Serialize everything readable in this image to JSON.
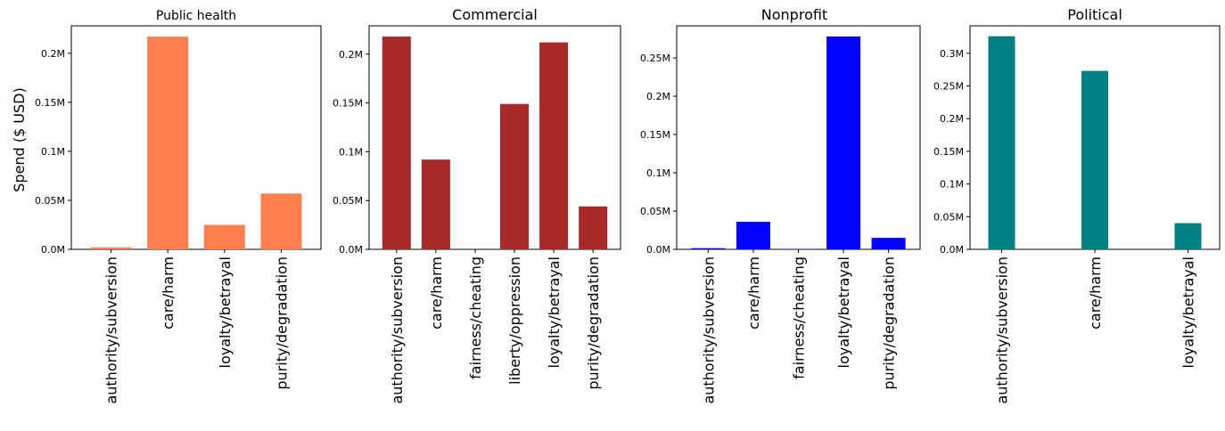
{
  "figure": {
    "ylabel": "Spend ($ USD)"
  },
  "chart_data": [
    {
      "type": "bar",
      "title": "Public health",
      "color": "#ff7f50",
      "categories": [
        "authority/subversion",
        "care/harm",
        "loyalty/betrayal",
        "purity/degradation"
      ],
      "values": [
        2000,
        217000,
        25000,
        57000
      ],
      "ylim": [
        0,
        228000
      ],
      "yticks": [
        0,
        50000,
        100000,
        150000,
        200000
      ],
      "ytick_labels": [
        "0.0M",
        "0.05M",
        "0.1M",
        "0.15M",
        "0.2M"
      ],
      "grid": false
    },
    {
      "type": "bar",
      "title": "Commercial",
      "color": "#a52a2a",
      "categories": [
        "authority/subversion",
        "care/harm",
        "fairness/cheating",
        "liberty/oppression",
        "loyalty/betrayal",
        "purity/degradation"
      ],
      "values": [
        218000,
        92000,
        0,
        149000,
        212000,
        44000
      ],
      "ylim": [
        0,
        229000
      ],
      "yticks": [
        0,
        50000,
        100000,
        150000,
        200000
      ],
      "ytick_labels": [
        "0.0M",
        "0.05M",
        "0.1M",
        "0.15M",
        "0.2M"
      ],
      "grid": false
    },
    {
      "type": "bar",
      "title": "Nonprofit",
      "color": "#0000ff",
      "categories": [
        "authority/subversion",
        "care/harm",
        "fairness/cheating",
        "loyalty/betrayal",
        "purity/degradation"
      ],
      "values": [
        1500,
        36000,
        500,
        278000,
        15000
      ],
      "ylim": [
        0,
        292000
      ],
      "yticks": [
        0,
        50000,
        100000,
        150000,
        200000,
        250000
      ],
      "ytick_labels": [
        "0.0M",
        "0.05M",
        "0.1M",
        "0.15M",
        "0.2M",
        "0.25M"
      ],
      "grid": false
    },
    {
      "type": "bar",
      "title": "Political",
      "color": "#008080",
      "categories": [
        "authority/subversion",
        "care/harm",
        "loyalty/betrayal"
      ],
      "values": [
        326000,
        273000,
        40000
      ],
      "ylim": [
        0,
        342000
      ],
      "yticks": [
        0,
        50000,
        100000,
        150000,
        200000,
        250000,
        300000
      ],
      "ytick_labels": [
        "0.0M",
        "0.05M",
        "0.1M",
        "0.15M",
        "0.2M",
        "0.25M",
        "0.3M"
      ],
      "grid": false
    }
  ]
}
